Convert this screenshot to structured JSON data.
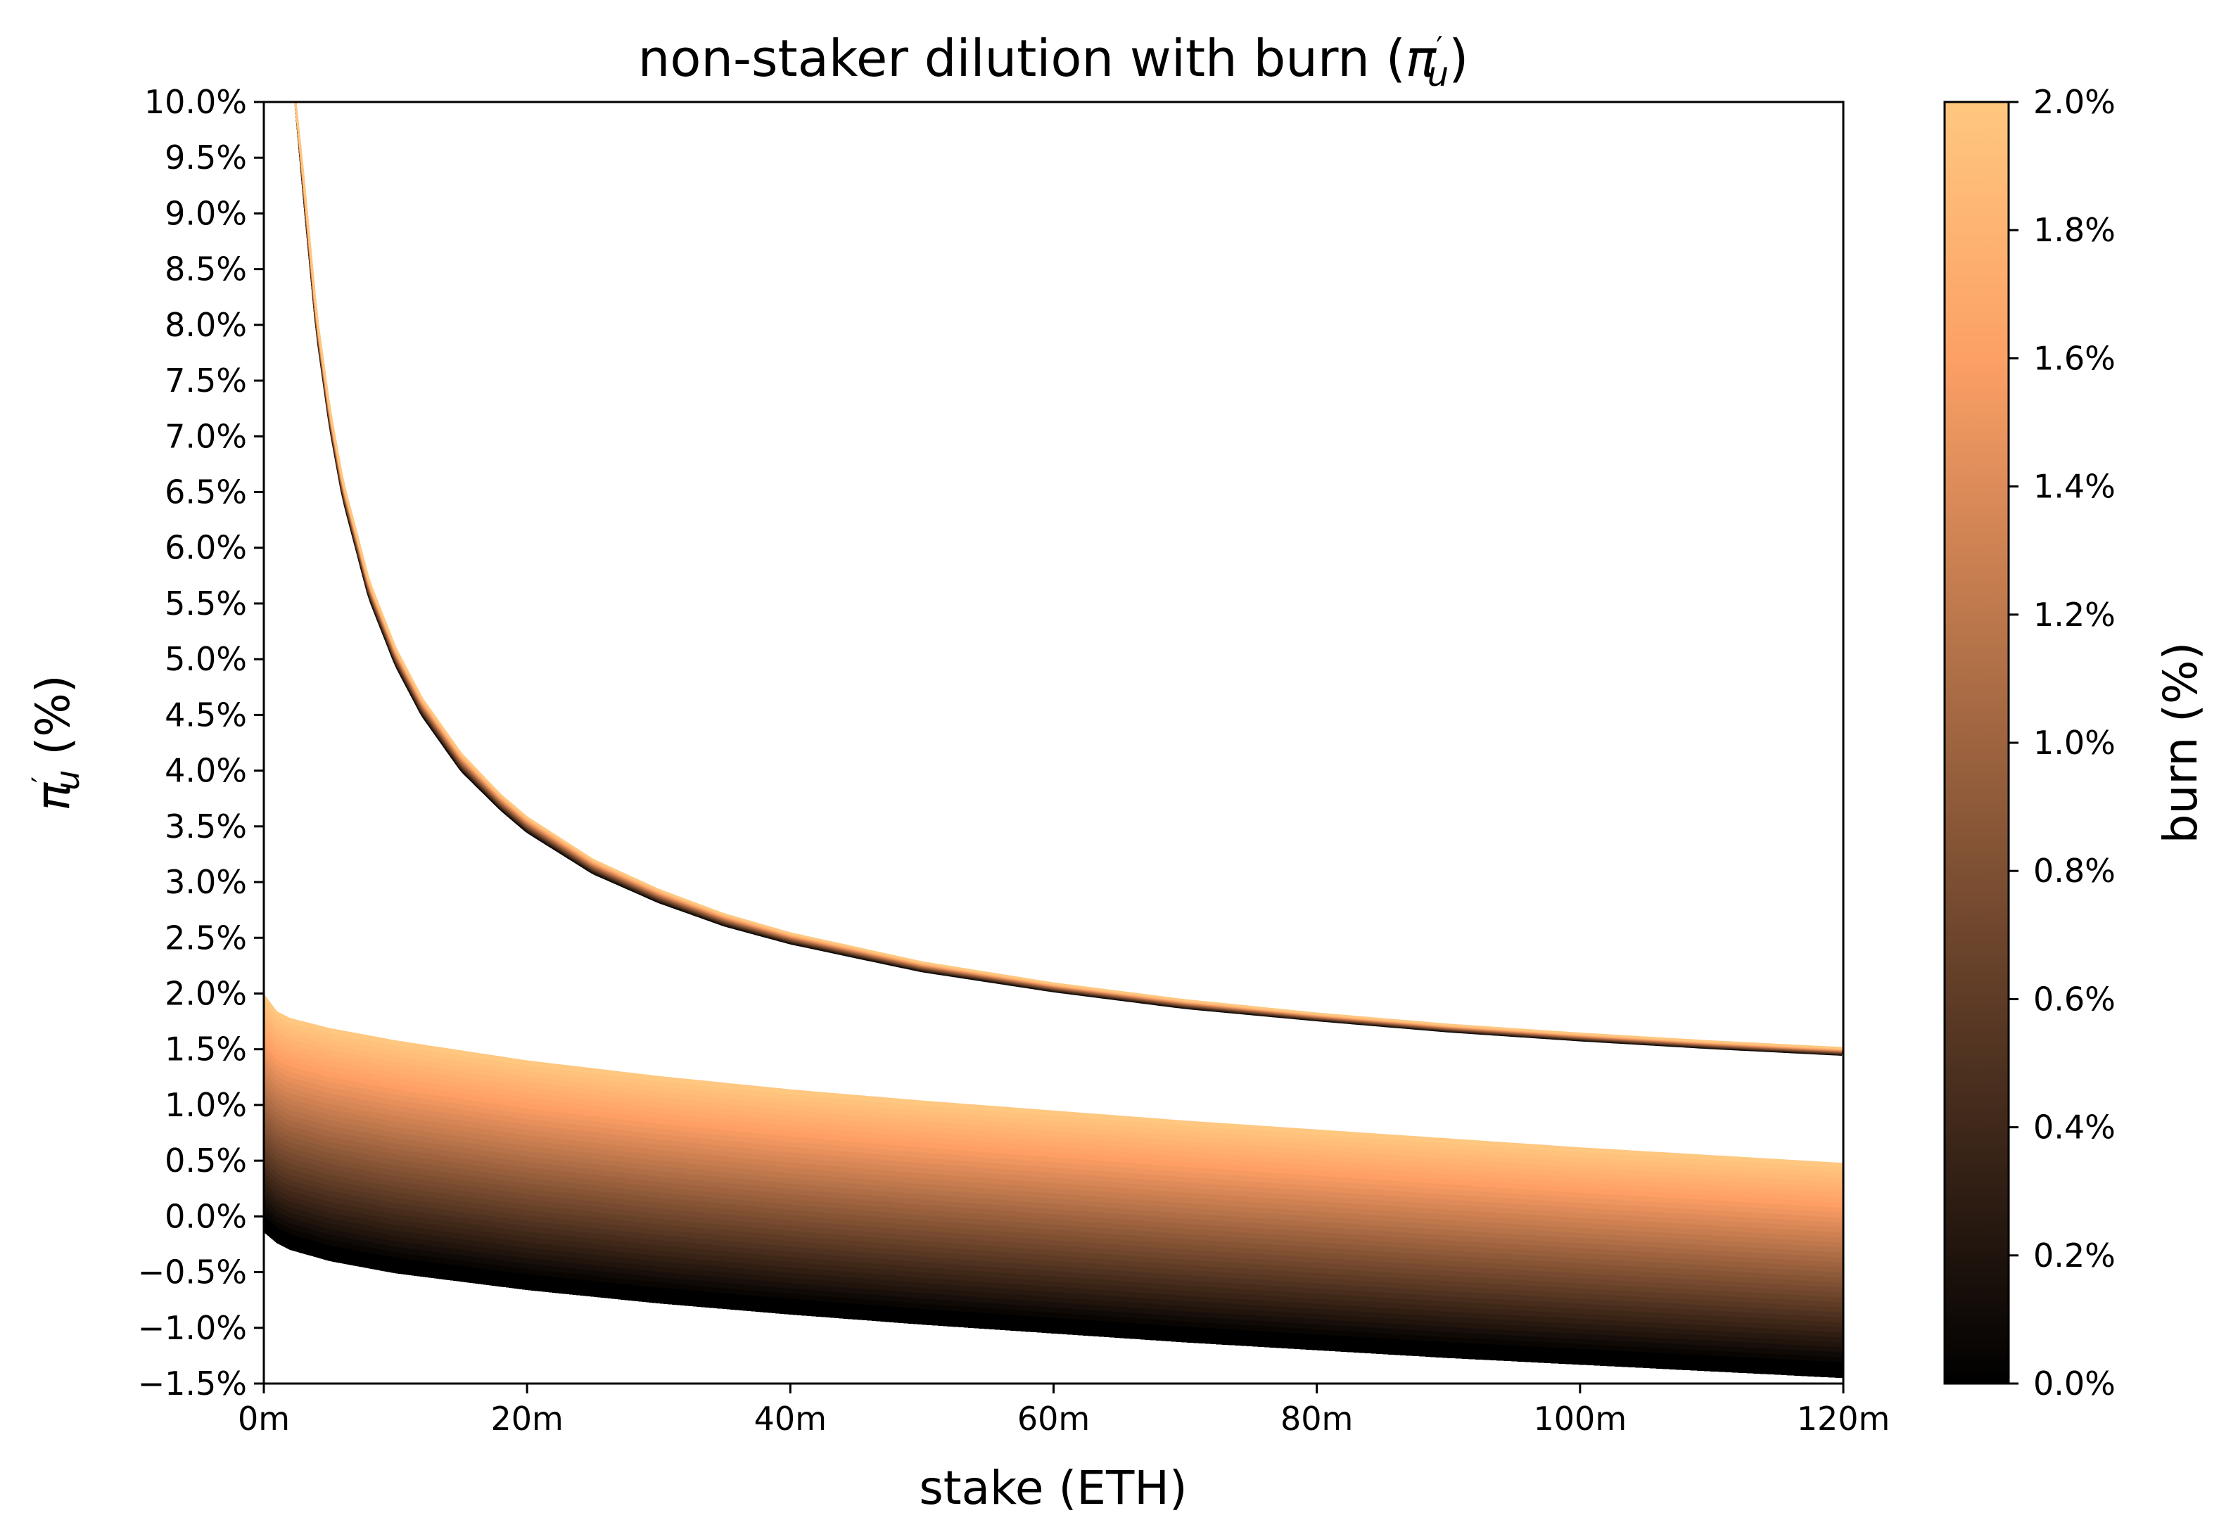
{
  "chart_data": {
    "type": "line",
    "title": "non-staker dilution with burn (",
    "title_symbol": "π",
    "title_sub": "u",
    "title_prime": "′",
    "title_close": ")",
    "xlabel": "stake (ETH)",
    "ylabel_symbol": "π",
    "ylabel_sub": "u",
    "ylabel_prime": "′",
    "ylabel_rest": " (%)",
    "xlim": [
      0,
      120
    ],
    "ylim": [
      -1.5,
      10.0
    ],
    "x_ticks": [
      {
        "value": 0,
        "label": "0m"
      },
      {
        "value": 20,
        "label": "20m"
      },
      {
        "value": 40,
        "label": "40m"
      },
      {
        "value": 60,
        "label": "60m"
      },
      {
        "value": 80,
        "label": "80m"
      },
      {
        "value": 100,
        "label": "100m"
      },
      {
        "value": 120,
        "label": "120m"
      }
    ],
    "y_ticks": [
      {
        "value": 10.0,
        "label": "10.0%"
      },
      {
        "value": 9.5,
        "label": "9.5%"
      },
      {
        "value": 9.0,
        "label": "9.0%"
      },
      {
        "value": 8.5,
        "label": "8.5%"
      },
      {
        "value": 8.0,
        "label": "8.0%"
      },
      {
        "value": 7.5,
        "label": "7.5%"
      },
      {
        "value": 7.0,
        "label": "7.0%"
      },
      {
        "value": 6.5,
        "label": "6.5%"
      },
      {
        "value": 6.0,
        "label": "6.0%"
      },
      {
        "value": 5.5,
        "label": "5.5%"
      },
      {
        "value": 5.0,
        "label": "5.0%"
      },
      {
        "value": 4.5,
        "label": "4.5%"
      },
      {
        "value": 4.0,
        "label": "4.0%"
      },
      {
        "value": 3.5,
        "label": "3.5%"
      },
      {
        "value": 3.0,
        "label": "3.0%"
      },
      {
        "value": 2.5,
        "label": "2.5%"
      },
      {
        "value": 2.0,
        "label": "2.0%"
      },
      {
        "value": 1.5,
        "label": "1.5%"
      },
      {
        "value": 1.0,
        "label": "1.0%"
      },
      {
        "value": 0.5,
        "label": "0.5%"
      },
      {
        "value": 0.0,
        "label": "0.0%"
      },
      {
        "value": -0.5,
        "label": "−0.5%"
      },
      {
        "value": -1.0,
        "label": "−1.0%"
      },
      {
        "value": -1.5,
        "label": "−1.5%"
      }
    ],
    "upper_curve": {
      "x": [
        2.4,
        3,
        4,
        5,
        6,
        8,
        10,
        12,
        15,
        18,
        20,
        25,
        30,
        35,
        40,
        50,
        60,
        70,
        80,
        90,
        100,
        110,
        120
      ],
      "y_at_burn_0": [
        10.0,
        9.2,
        7.95,
        7.1,
        6.45,
        5.55,
        4.95,
        4.5,
        4.0,
        3.65,
        3.45,
        3.08,
        2.82,
        2.61,
        2.45,
        2.2,
        2.02,
        1.87,
        1.76,
        1.66,
        1.58,
        1.51,
        1.45
      ],
      "y_at_burn_2": [
        10.0,
        9.35,
        8.1,
        7.25,
        6.6,
        5.7,
        5.1,
        4.65,
        4.15,
        3.78,
        3.58,
        3.2,
        2.93,
        2.71,
        2.54,
        2.28,
        2.09,
        1.94,
        1.82,
        1.72,
        1.64,
        1.57,
        1.51
      ]
    },
    "lower_band": {
      "x": [
        0,
        1,
        2,
        5,
        10,
        20,
        30,
        40,
        50,
        60,
        70,
        80,
        90,
        100,
        110,
        120
      ],
      "y_at_burn_0": [
        0.0,
        -0.1,
        -0.16,
        -0.26,
        -0.37,
        -0.52,
        -0.64,
        -0.74,
        -0.83,
        -0.91,
        -0.99,
        -1.06,
        -1.13,
        -1.19,
        -1.25,
        -1.31
      ],
      "y_at_burn_2": [
        2.0,
        1.84,
        1.78,
        1.69,
        1.58,
        1.4,
        1.26,
        1.14,
        1.04,
        0.95,
        0.86,
        0.78,
        0.7,
        0.62,
        0.55,
        0.48
      ],
      "y_lower_edge_right": -1.45,
      "y_upper_edge_right": 0.42
    },
    "colorbar": {
      "label": "burn (%)",
      "range": [
        0.0,
        2.0
      ],
      "ticks": [
        {
          "value": 2.0,
          "label": "2.0%"
        },
        {
          "value": 1.8,
          "label": "1.8%"
        },
        {
          "value": 1.6,
          "label": "1.6%"
        },
        {
          "value": 1.4,
          "label": "1.4%"
        },
        {
          "value": 1.2,
          "label": "1.2%"
        },
        {
          "value": 1.0,
          "label": "1.0%"
        },
        {
          "value": 0.8,
          "label": "0.8%"
        },
        {
          "value": 0.6,
          "label": "0.6%"
        },
        {
          "value": 0.4,
          "label": "0.4%"
        },
        {
          "value": 0.2,
          "label": "0.2%"
        },
        {
          "value": 0.0,
          "label": "0.0%"
        }
      ],
      "colormap": "copper",
      "colors": [
        "#000000",
        "#ffc77f"
      ]
    },
    "grid": false
  }
}
